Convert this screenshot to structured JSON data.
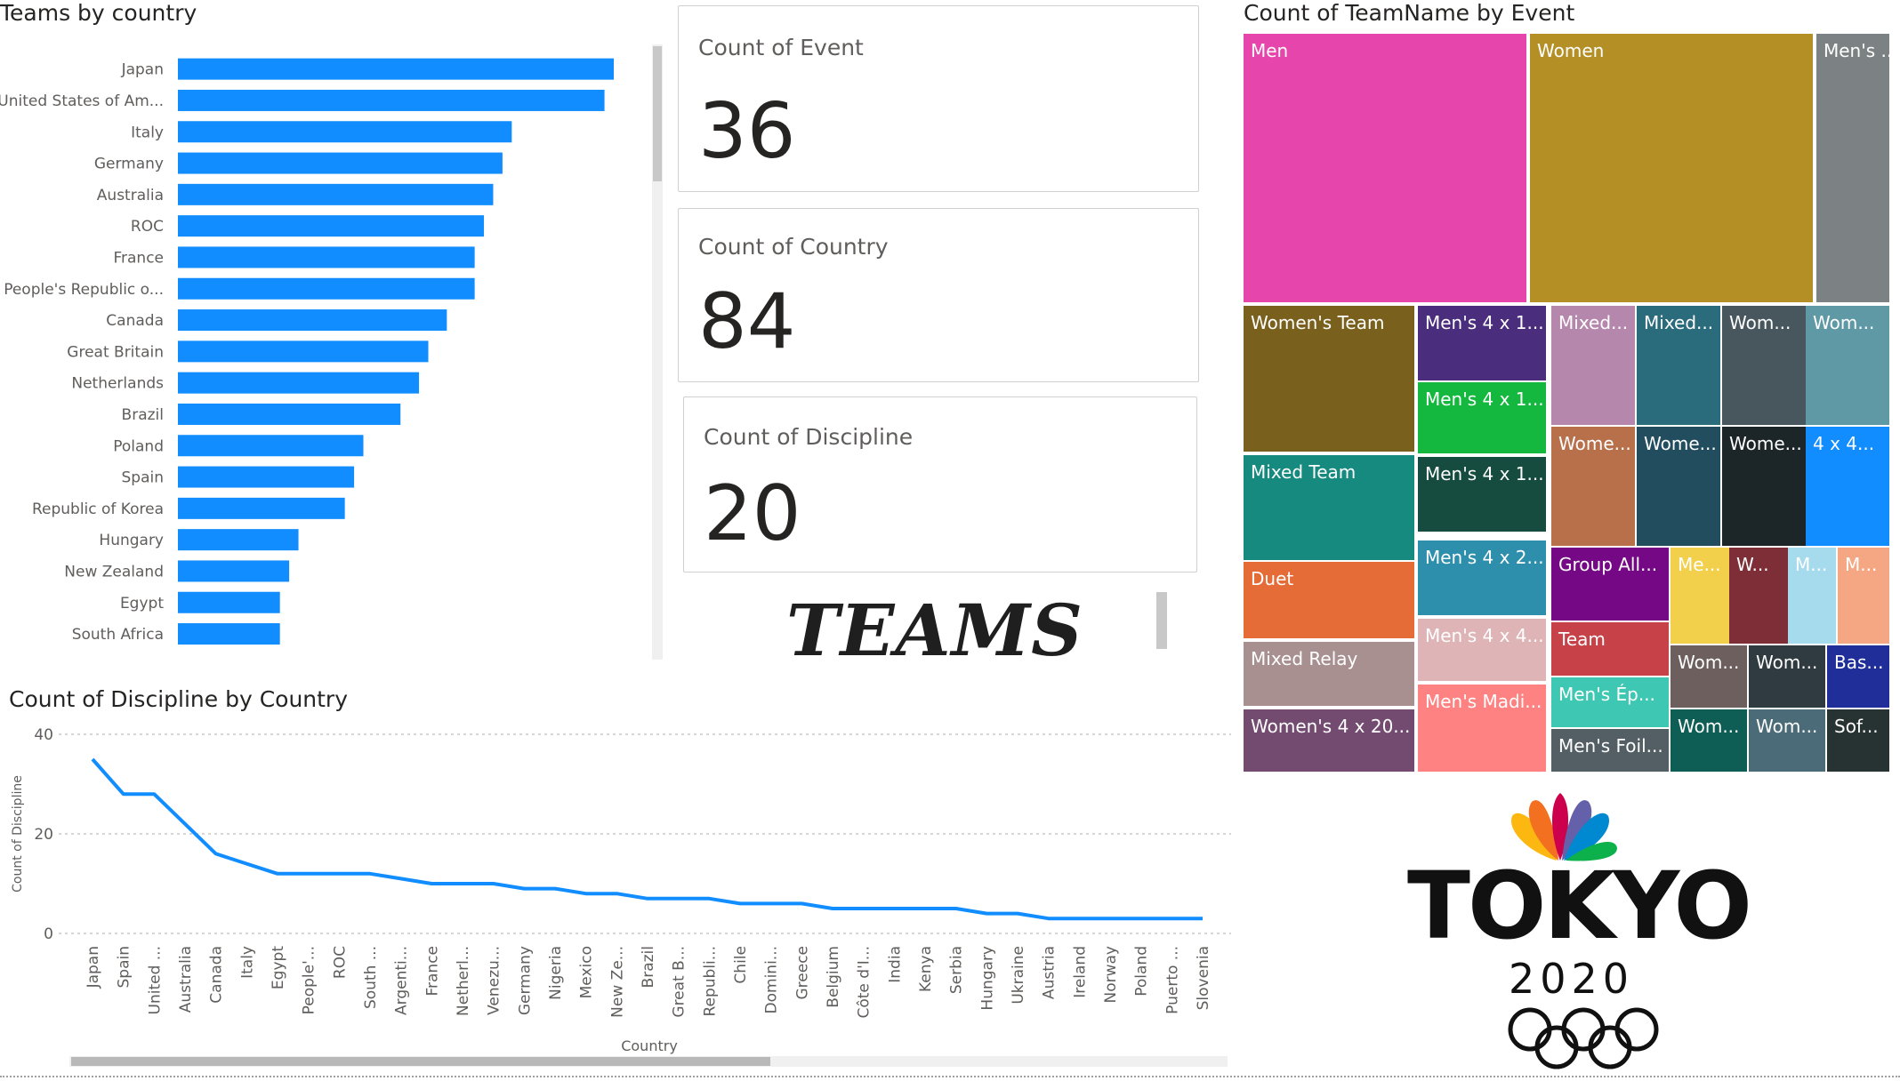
{
  "bar_title": "Teams by country",
  "cards": [
    {
      "label": "Count of Event",
      "value": "36"
    },
    {
      "label": "Count of Country",
      "value": "84"
    },
    {
      "label": "Count of Discipline",
      "value": "20"
    }
  ],
  "teams_text": "TEAMS",
  "treemap_title": "Count of TeamName by Event",
  "line_title": "Count of Discipline by Country",
  "logo": {
    "word": "TOKYO",
    "year": "2020"
  },
  "colors": {
    "bar": "#118dff",
    "line": "#118dff"
  },
  "chart_data": [
    {
      "type": "bar",
      "orientation": "horizontal",
      "title": "Teams by country",
      "categories": [
        "Japan",
        "United States of Am...",
        "Italy",
        "Germany",
        "Australia",
        "ROC",
        "France",
        "People's Republic o...",
        "Canada",
        "Great Britain",
        "Netherlands",
        "Brazil",
        "Poland",
        "Spain",
        "Republic of Korea",
        "Hungary",
        "New Zealand",
        "Egypt",
        "South Africa"
      ],
      "values": [
        47,
        46,
        36,
        35,
        34,
        33,
        32,
        32,
        29,
        27,
        26,
        24,
        20,
        19,
        18,
        13,
        12,
        11,
        11
      ],
      "xlim": [
        0,
        47
      ],
      "grid": false
    },
    {
      "type": "treemap",
      "title": "Count of TeamName by Event",
      "items": [
        {
          "label": "Men",
          "color": "#e645ab"
        },
        {
          "label": "Women",
          "color": "#b38f26"
        },
        {
          "label": "Men's ...",
          "color": "#7c8283"
        },
        {
          "label": "Women's Team",
          "color": "#7a601d"
        },
        {
          "label": "Men's 4 x 1...",
          "color": "#4b2d7d"
        },
        {
          "label": "Mixed...",
          "color": "#b687ac"
        },
        {
          "label": "Mixed...",
          "color": "#2a6b7c"
        },
        {
          "label": "Wom...",
          "color": "#47575d"
        },
        {
          "label": "Wom...",
          "color": "#5e99a5"
        },
        {
          "label": "Men's 4 x 1...",
          "color": "#15b83e"
        },
        {
          "label": "Mixed Team",
          "color": "#178a80"
        },
        {
          "label": "Men's 4 x 1...",
          "color": "#154c3f"
        },
        {
          "label": "Wome...",
          "color": "#b8704b"
        },
        {
          "label": "Wome...",
          "color": "#214d5f"
        },
        {
          "label": "Wome...",
          "color": "#1c2527"
        },
        {
          "label": "4 x 4...",
          "color": "#118dff"
        },
        {
          "label": "Duet",
          "color": "#e66c37"
        },
        {
          "label": "Men's 4 x 2...",
          "color": "#2e8fad"
        },
        {
          "label": "Group All...",
          "color": "#750985"
        },
        {
          "label": "Me...",
          "color": "#f2d04c"
        },
        {
          "label": "W...",
          "color": "#7d2e37"
        },
        {
          "label": "M...",
          "color": "#a6dbed"
        },
        {
          "label": "M...",
          "color": "#f5a784"
        },
        {
          "label": "Mixed Relay",
          "color": "#a89090"
        },
        {
          "label": "Men's 4 x 4...",
          "color": "#dfb4b6"
        },
        {
          "label": "Team",
          "color": "#c74148"
        },
        {
          "label": "Wom...",
          "color": "#6d5f5d"
        },
        {
          "label": "Wom...",
          "color": "#2f3b40"
        },
        {
          "label": "Bas...",
          "color": "#1f2e98"
        },
        {
          "label": "Men's Ép...",
          "color": "#3ec7b2"
        },
        {
          "label": "Women's 4 x 20...",
          "color": "#744b70"
        },
        {
          "label": "Men's Madi...",
          "color": "#ff8282"
        },
        {
          "label": "Men's Foil...",
          "color": "#535f65"
        },
        {
          "label": "Wom...",
          "color": "#0f5e55"
        },
        {
          "label": "Wom...",
          "color": "#4c6b78"
        },
        {
          "label": "Sof...",
          "color": "#273332"
        }
      ]
    },
    {
      "type": "line",
      "title": "Count of Discipline by Country",
      "xlabel": "Country",
      "ylabel": "Count of Discipline",
      "ylim": [
        0,
        40
      ],
      "yticks": [
        0,
        20,
        40
      ],
      "grid": true,
      "x": [
        "Japan",
        "Spain",
        "United ...",
        "Australia",
        "Canada",
        "Italy",
        "Egypt",
        "People'...",
        "ROC",
        "South ...",
        "Argenti...",
        "France",
        "Netherl...",
        "Venezu...",
        "Germany",
        "Nigeria",
        "Mexico",
        "New Ze...",
        "Brazil",
        "Great B...",
        "Republi...",
        "Chile",
        "Domini...",
        "Greece",
        "Belgium",
        "Côte d'I...",
        "India",
        "Kenya",
        "Serbia",
        "Hungary",
        "Ukraine",
        "Austria",
        "Ireland",
        "Norway",
        "Poland",
        "Puerto ...",
        "Slovenia"
      ],
      "y": [
        35,
        28,
        28,
        22,
        16,
        14,
        12,
        12,
        12,
        12,
        11,
        10,
        10,
        10,
        9,
        9,
        8,
        8,
        7,
        7,
        7,
        6,
        6,
        6,
        5,
        5,
        5,
        5,
        5,
        4,
        4,
        3,
        3,
        3,
        3,
        3,
        3
      ]
    }
  ]
}
